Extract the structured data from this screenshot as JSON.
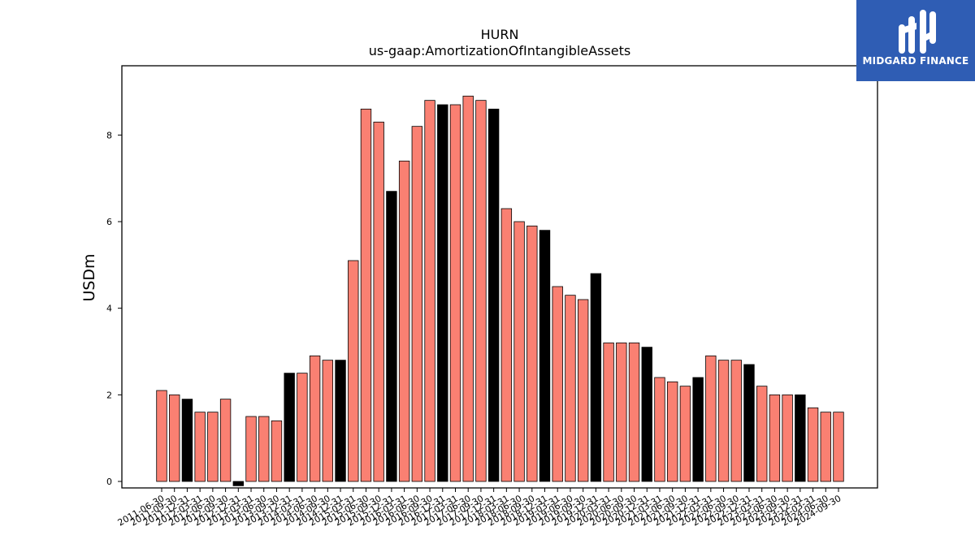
{
  "chart_data": {
    "type": "bar",
    "title": "HURN",
    "subtitle": "us-gaap:AmortizationOfIntangibleAssets",
    "xlabel": "",
    "ylabel": "USDm",
    "ylim": [
      -0.15,
      9.6
    ],
    "yticks": [
      0,
      2,
      4,
      6,
      8
    ],
    "grid": false,
    "colors": {
      "quarter": "#fa8072",
      "annual": "#000000",
      "edge": "#000000"
    },
    "categories": [
      "2011-06-30",
      "2011-09-30",
      "2011-12-31",
      "2012-03-31",
      "2012-06-30",
      "2012-09-30",
      "2012-12-31",
      "2013-03-31",
      "2013-06-30",
      "2013-09-30",
      "2013-12-31",
      "2014-03-31",
      "2014-06-30",
      "2014-09-30",
      "2014-12-31",
      "2015-03-31",
      "2015-06-30",
      "2015-09-30",
      "2015-12-31",
      "2016-03-31",
      "2016-06-30",
      "2016-09-30",
      "2016-12-31",
      "2017-03-31",
      "2017-06-30",
      "2017-09-30",
      "2017-12-31",
      "2018-03-31",
      "2018-06-30",
      "2018-09-30",
      "2018-12-31",
      "2019-03-31",
      "2019-06-30",
      "2019-09-30",
      "2019-12-31",
      "2020-03-31",
      "2020-06-30",
      "2020-09-30",
      "2020-12-31",
      "2021-03-31",
      "2021-06-30",
      "2021-09-30",
      "2021-12-31",
      "2022-03-31",
      "2022-06-30",
      "2022-09-30",
      "2022-12-31",
      "2023-03-31",
      "2023-06-30",
      "2023-09-30",
      "2023-12-31",
      "2024-03-31",
      "2024-06-30",
      "2024-09-30"
    ],
    "values": [
      2.1,
      2.0,
      1.9,
      1.6,
      1.6,
      1.9,
      -0.1,
      1.5,
      1.5,
      1.4,
      2.5,
      2.5,
      2.9,
      2.8,
      2.8,
      5.1,
      8.6,
      8.3,
      6.7,
      7.4,
      8.2,
      8.8,
      8.7,
      8.7,
      8.9,
      8.8,
      8.6,
      6.3,
      6.0,
      5.9,
      5.8,
      4.5,
      4.3,
      4.2,
      4.8,
      3.2,
      3.2,
      3.2,
      3.1,
      2.4,
      2.3,
      2.2,
      2.4,
      2.9,
      2.8,
      2.8,
      2.7,
      2.2,
      2.0,
      2.0,
      2.0,
      1.7,
      1.6,
      1.6
    ],
    "annual": [
      false,
      false,
      true,
      false,
      false,
      false,
      true,
      false,
      false,
      false,
      true,
      false,
      false,
      false,
      true,
      false,
      false,
      false,
      true,
      false,
      false,
      false,
      true,
      false,
      false,
      false,
      true,
      false,
      false,
      false,
      true,
      false,
      false,
      false,
      true,
      false,
      false,
      false,
      true,
      false,
      false,
      false,
      true,
      false,
      false,
      false,
      true,
      false,
      false,
      false,
      true,
      false,
      false,
      false
    ]
  },
  "logo": {
    "text": "MIDGARD FINANCE",
    "icon": "midgard-logo-icon",
    "color": "#2f5db4"
  }
}
